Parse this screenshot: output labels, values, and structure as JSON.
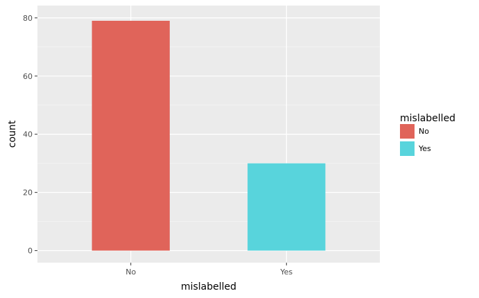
{
  "chart_data": {
    "type": "bar",
    "categories": [
      "No",
      "Yes"
    ],
    "values": [
      79,
      30
    ],
    "colors": [
      "#e0645a",
      "#58d4dc"
    ],
    "xlabel": "mislabelled",
    "ylabel": "count",
    "ylim": [
      0,
      82
    ],
    "yticks": [
      0,
      20,
      40,
      60,
      80
    ],
    "grid": true,
    "legend": {
      "title": "mislabelled",
      "position": "right",
      "items": [
        {
          "label": "No",
          "color": "#e0645a"
        },
        {
          "label": "Yes",
          "color": "#58d4dc"
        }
      ]
    }
  }
}
